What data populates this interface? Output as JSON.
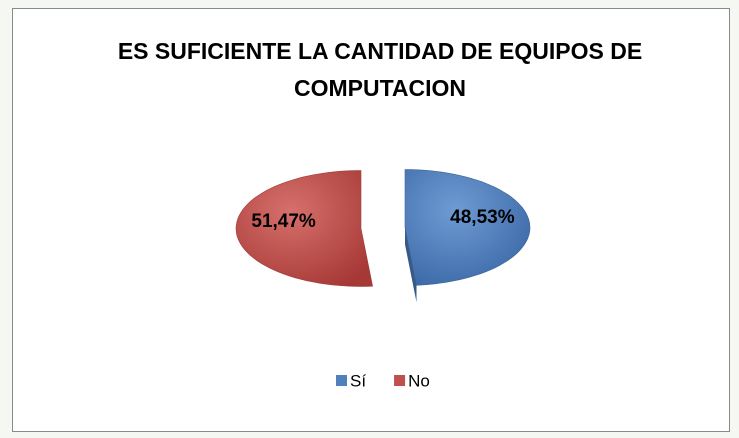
{
  "chart_data": {
    "type": "pie",
    "title": "ES SUFICIENTE LA CANTIDAD DE EQUIPOS DE COMPUTACION",
    "categories": [
      "Sí",
      "No"
    ],
    "values": [
      48.53,
      51.47
    ],
    "value_labels": [
      "48,53%",
      "51,47%"
    ],
    "colors": [
      "#4f81bd",
      "#c0504d"
    ],
    "legend": "bottom"
  }
}
